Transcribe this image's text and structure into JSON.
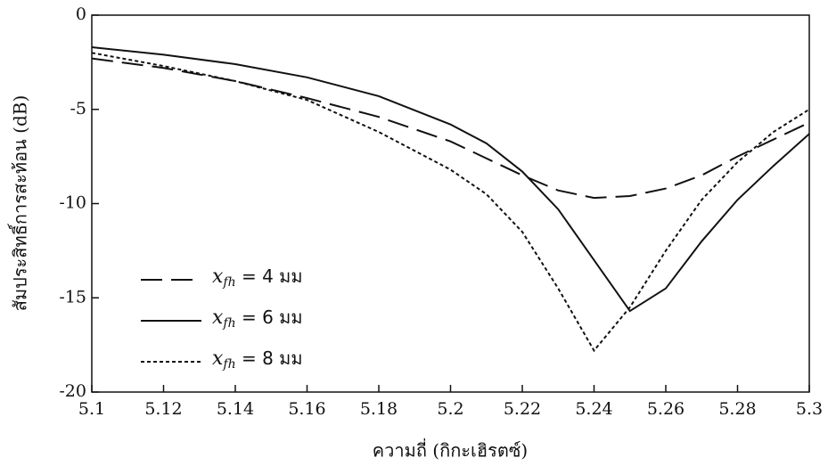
{
  "chart_data": {
    "type": "line",
    "x_label": "ความถี่ (กิกะเฮิรตซ์)",
    "y_label": "สัมประสิทธิ์การสะท้อน   (dB)",
    "x": [
      5.1,
      5.12,
      5.14,
      5.16,
      5.18,
      5.2,
      5.21,
      5.22,
      5.23,
      5.24,
      5.25,
      5.26,
      5.27,
      5.28,
      5.29,
      5.3
    ],
    "series": [
      {
        "name": "xfh = 4 มม",
        "color": "#111111",
        "line_style": "dashed",
        "values": [
          -2.3,
          -2.8,
          -3.5,
          -4.4,
          -5.4,
          -6.7,
          -7.6,
          -8.5,
          -9.3,
          -9.7,
          -9.6,
          -9.2,
          -8.5,
          -7.5,
          -6.6,
          -5.7
        ]
      },
      {
        "name": "xfh = 6 มม",
        "color": "#111111",
        "line_style": "solid",
        "values": [
          -1.7,
          -2.1,
          -2.6,
          -3.3,
          -4.3,
          -5.8,
          -6.8,
          -8.3,
          -10.3,
          -13.0,
          -15.7,
          -14.5,
          -12.0,
          -9.8,
          -8.0,
          -6.3
        ]
      },
      {
        "name": "xfh = 8 มม",
        "color": "#111111",
        "line_style": "dotted",
        "values": [
          -2.0,
          -2.7,
          -3.5,
          -4.5,
          -6.2,
          -8.2,
          -9.5,
          -11.5,
          -14.5,
          -17.8,
          -15.5,
          -12.5,
          -9.8,
          -7.8,
          -6.2,
          -5.0
        ]
      }
    ],
    "xlim": [
      5.1,
      5.3
    ],
    "xticks": [
      5.1,
      5.12,
      5.14,
      5.16,
      5.18,
      5.2,
      5.22,
      5.24,
      5.26,
      5.28,
      5.3
    ],
    "ylim": [
      -20,
      0
    ],
    "yticks": [
      0,
      -5,
      -10,
      -15,
      -20
    ],
    "grid": false,
    "legend_position": "left"
  }
}
